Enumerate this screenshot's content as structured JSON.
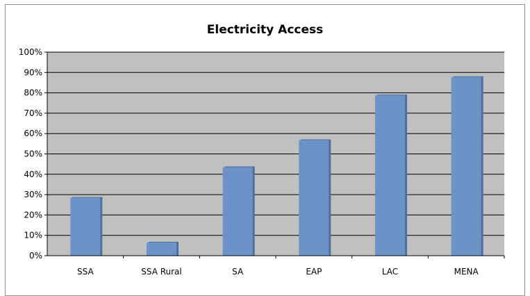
{
  "chart_data": {
    "type": "bar",
    "title": "Electricity Access",
    "xlabel": "",
    "ylabel": "",
    "categories": [
      "SSA",
      "SSA Rural",
      "SA",
      "EAP",
      "LAC",
      "MENA"
    ],
    "values": [
      28.5,
      6.5,
      43.5,
      56.8,
      78.8,
      87.8
    ],
    "yticks": [
      "0%",
      "10%",
      "20%",
      "30%",
      "40%",
      "50%",
      "60%",
      "70%",
      "80%",
      "90%",
      "100%"
    ],
    "ylim": [
      0,
      100
    ],
    "grid": true,
    "legend": "none",
    "colors": {
      "bar": "#6b93c8",
      "bar_shadow": "#4f6f9c",
      "plot_background": "#c0c0c0",
      "gridline": "#000000"
    }
  }
}
